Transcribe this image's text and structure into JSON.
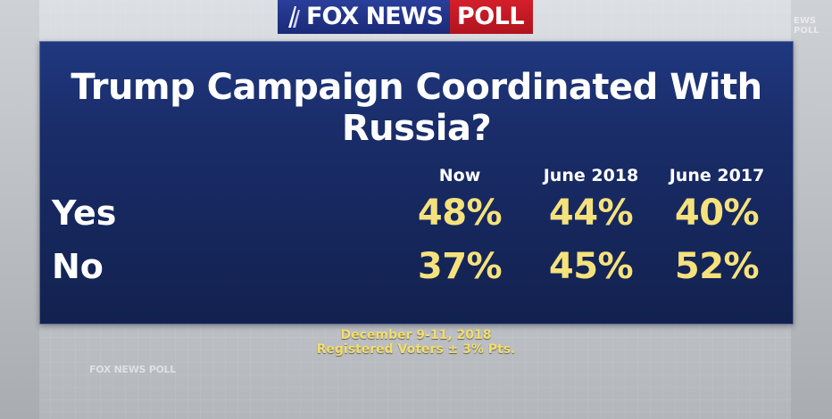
{
  "header": {
    "logo_fox_news": "FOX NEWS",
    "logo_poll": "POLL"
  },
  "panel": {
    "title": "Trump Campaign Coordinated With Russia?",
    "columns": [
      "Now",
      "June 2018",
      "June 2017"
    ],
    "rows": [
      {
        "label": "Yes",
        "values": [
          "48%",
          "44%",
          "40%"
        ]
      },
      {
        "label": "No",
        "values": [
          "37%",
          "45%",
          "52%"
        ]
      }
    ]
  },
  "footer": {
    "dates": "December 9-11, 2018",
    "sample": "Registered Voters ± 3% Pts."
  },
  "background": {
    "faint_logo_left": "FOX NEWS POLL",
    "faint_logo_right": "EWS POLL"
  },
  "colors": {
    "panel_blue": "#1a2d6a",
    "value_yellow": "#f6e27c",
    "logo_blue": "#1b2a78",
    "logo_red": "#b0141e"
  }
}
